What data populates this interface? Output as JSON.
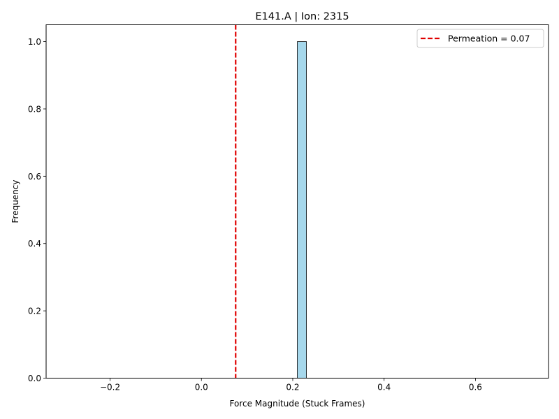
{
  "chart_data": {
    "type": "bar",
    "title": "E141.A | Ion: 2315",
    "xlabel": "Force Magnitude (Stuck Frames)",
    "ylabel": "Frequency",
    "xlim": [
      -0.34,
      0.76
    ],
    "ylim": [
      0,
      1.05
    ],
    "xticks": [
      -0.2,
      0.0,
      0.2,
      0.4,
      0.6
    ],
    "xtick_labels": [
      "−0.2",
      "0.0",
      "0.2",
      "0.4",
      "0.6"
    ],
    "yticks": [
      0.0,
      0.2,
      0.4,
      0.6,
      0.8,
      1.0
    ],
    "ytick_labels": [
      "0.0",
      "0.2",
      "0.4",
      "0.6",
      "0.8",
      "1.0"
    ],
    "histogram": {
      "range": [
        -0.29,
        0.71
      ],
      "bin_count": 50,
      "bins": [
        {
          "x0": 0.21,
          "x1": 0.23,
          "value": 1.0
        }
      ],
      "fill_color": "#a6d8ec",
      "edge_color": "#000000"
    },
    "reference_line": {
      "x": 0.075,
      "label": "Permeation = 0.07",
      "color": "#e00000",
      "style": "dashed"
    },
    "legend": {
      "position": "top-right",
      "entries": [
        "Permeation = 0.07"
      ]
    },
    "grid": false
  }
}
